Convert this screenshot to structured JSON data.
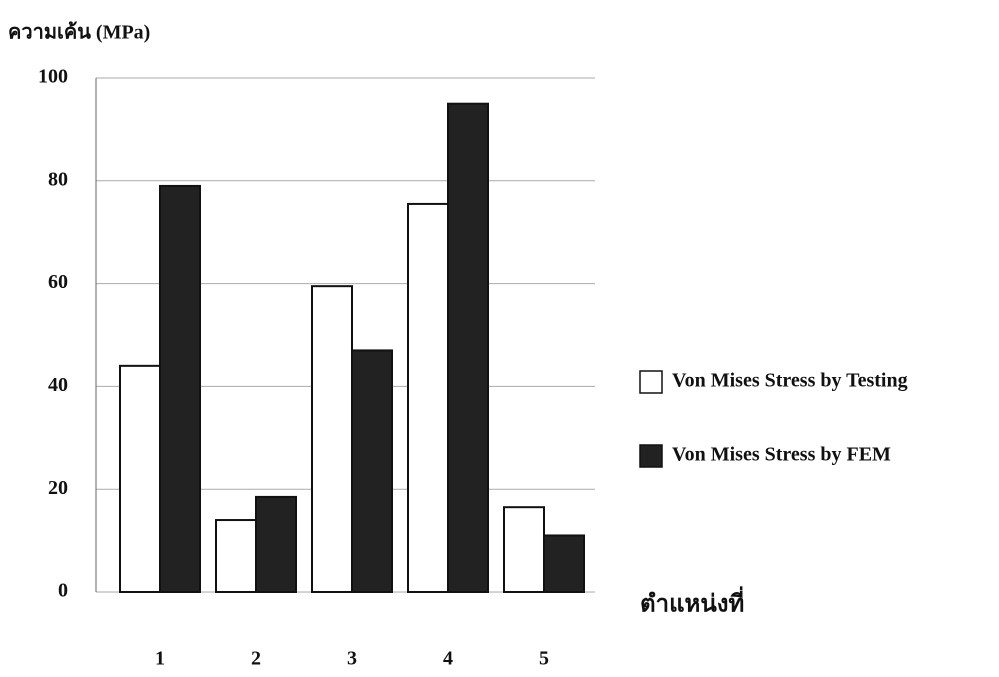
{
  "chart_data": {
    "type": "bar",
    "y_label": "ความเค้น (MPa)",
    "x_label": "ตำแหน่งที่",
    "categories": [
      "1",
      "2",
      "3",
      "4",
      "5"
    ],
    "series": [
      {
        "name": "Von Mises Stress by Testing",
        "color": "#ffffff",
        "values": [
          44,
          14,
          59.5,
          75.5,
          16.5
        ]
      },
      {
        "name": "Von Mises Stress by FEM",
        "color": "#222222",
        "values": [
          79,
          18.5,
          47,
          95,
          11
        ]
      }
    ],
    "ylim": [
      0,
      100
    ],
    "yticks": [
      0,
      20,
      40,
      60,
      80,
      100
    ],
    "grid": true
  }
}
